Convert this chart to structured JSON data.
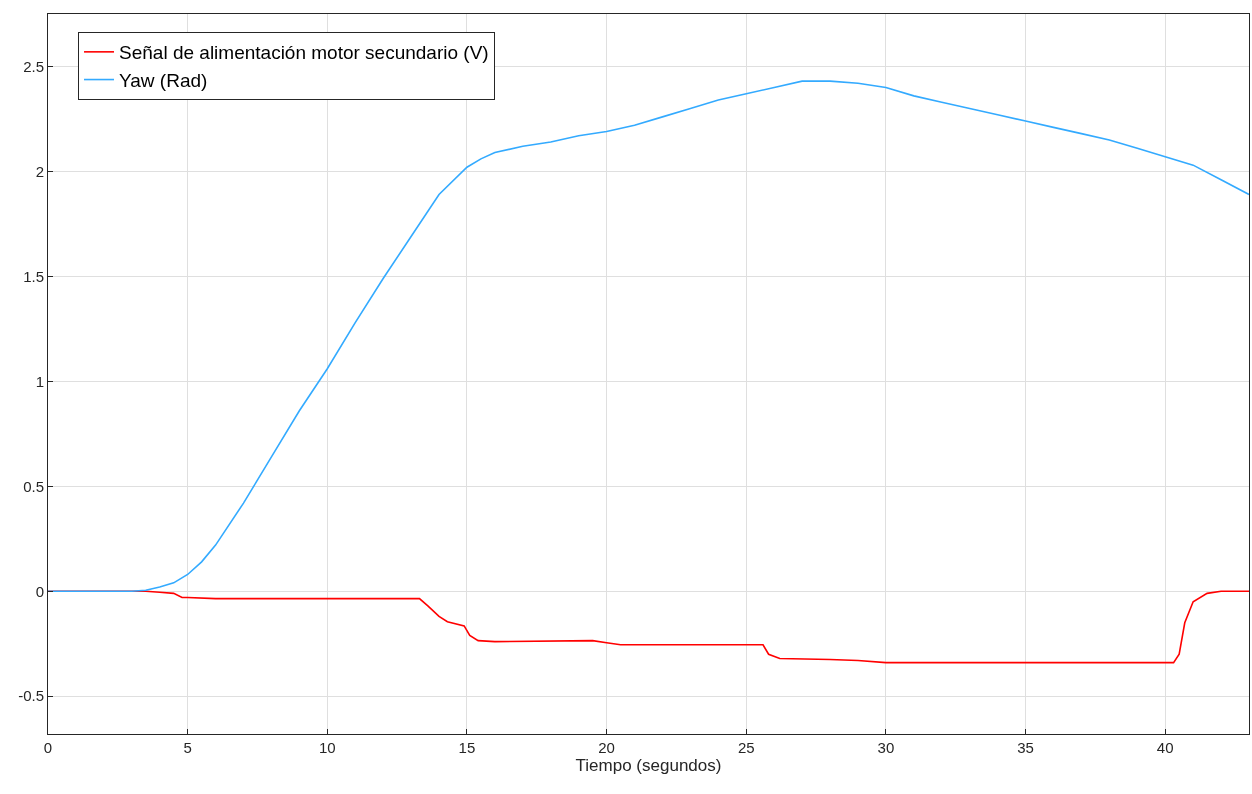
{
  "chart_data": {
    "type": "line",
    "xlabel": "Tiempo (segundos)",
    "xlim": [
      0,
      43
    ],
    "xticks": [
      0,
      5,
      10,
      15,
      20,
      25,
      30,
      35,
      40
    ],
    "ylim": [
      -0.68,
      2.75
    ],
    "yticks": [
      -0.5,
      0,
      0.5,
      1,
      1.5,
      2,
      2.5
    ],
    "grid": true,
    "legend": "top left",
    "line_style": "solid",
    "marker": "none",
    "series": [
      {
        "name": "Señal de alimentación motor secundario (V)",
        "color": "#ff0000",
        "x": [
          0,
          3.5,
          4,
          4.5,
          4.8,
          5,
          6,
          13.3,
          13.6,
          14,
          14.3,
          14.9,
          15.1,
          15.4,
          16,
          19.5,
          20,
          20.5,
          25.6,
          25.8,
          26.2,
          28,
          29,
          30,
          40.3,
          40.5,
          40.7,
          41,
          41.5,
          42,
          43
        ],
        "values": [
          0,
          0,
          -0.005,
          -0.01,
          -0.03,
          -0.03,
          -0.035,
          -0.035,
          -0.07,
          -0.12,
          -0.145,
          -0.165,
          -0.21,
          -0.235,
          -0.24,
          -0.235,
          -0.245,
          -0.255,
          -0.255,
          -0.3,
          -0.32,
          -0.325,
          -0.33,
          -0.34,
          -0.34,
          -0.3,
          -0.15,
          -0.05,
          -0.01,
          0,
          0
        ]
      },
      {
        "name": "Yaw (Rad)",
        "color": "#33aaff",
        "x": [
          0,
          3,
          3.5,
          4,
          4.5,
          5,
          5.5,
          6,
          7,
          8,
          9,
          10,
          11,
          12,
          13,
          14,
          15,
          15.5,
          16,
          17,
          18,
          19,
          20,
          21,
          22,
          23,
          24,
          25,
          26,
          27,
          28,
          29,
          30,
          31,
          32,
          33,
          34,
          35,
          36,
          37,
          38,
          39,
          40,
          41,
          42,
          43
        ],
        "values": [
          0,
          0,
          0.005,
          0.02,
          0.04,
          0.08,
          0.14,
          0.22,
          0.42,
          0.64,
          0.86,
          1.06,
          1.28,
          1.49,
          1.69,
          1.89,
          2.02,
          2.06,
          2.09,
          2.12,
          2.14,
          2.17,
          2.19,
          2.22,
          2.26,
          2.3,
          2.34,
          2.37,
          2.4,
          2.43,
          2.43,
          2.42,
          2.4,
          2.36,
          2.33,
          2.3,
          2.27,
          2.24,
          2.21,
          2.18,
          2.15,
          2.11,
          2.07,
          2.03,
          1.96,
          1.89
        ]
      }
    ]
  }
}
